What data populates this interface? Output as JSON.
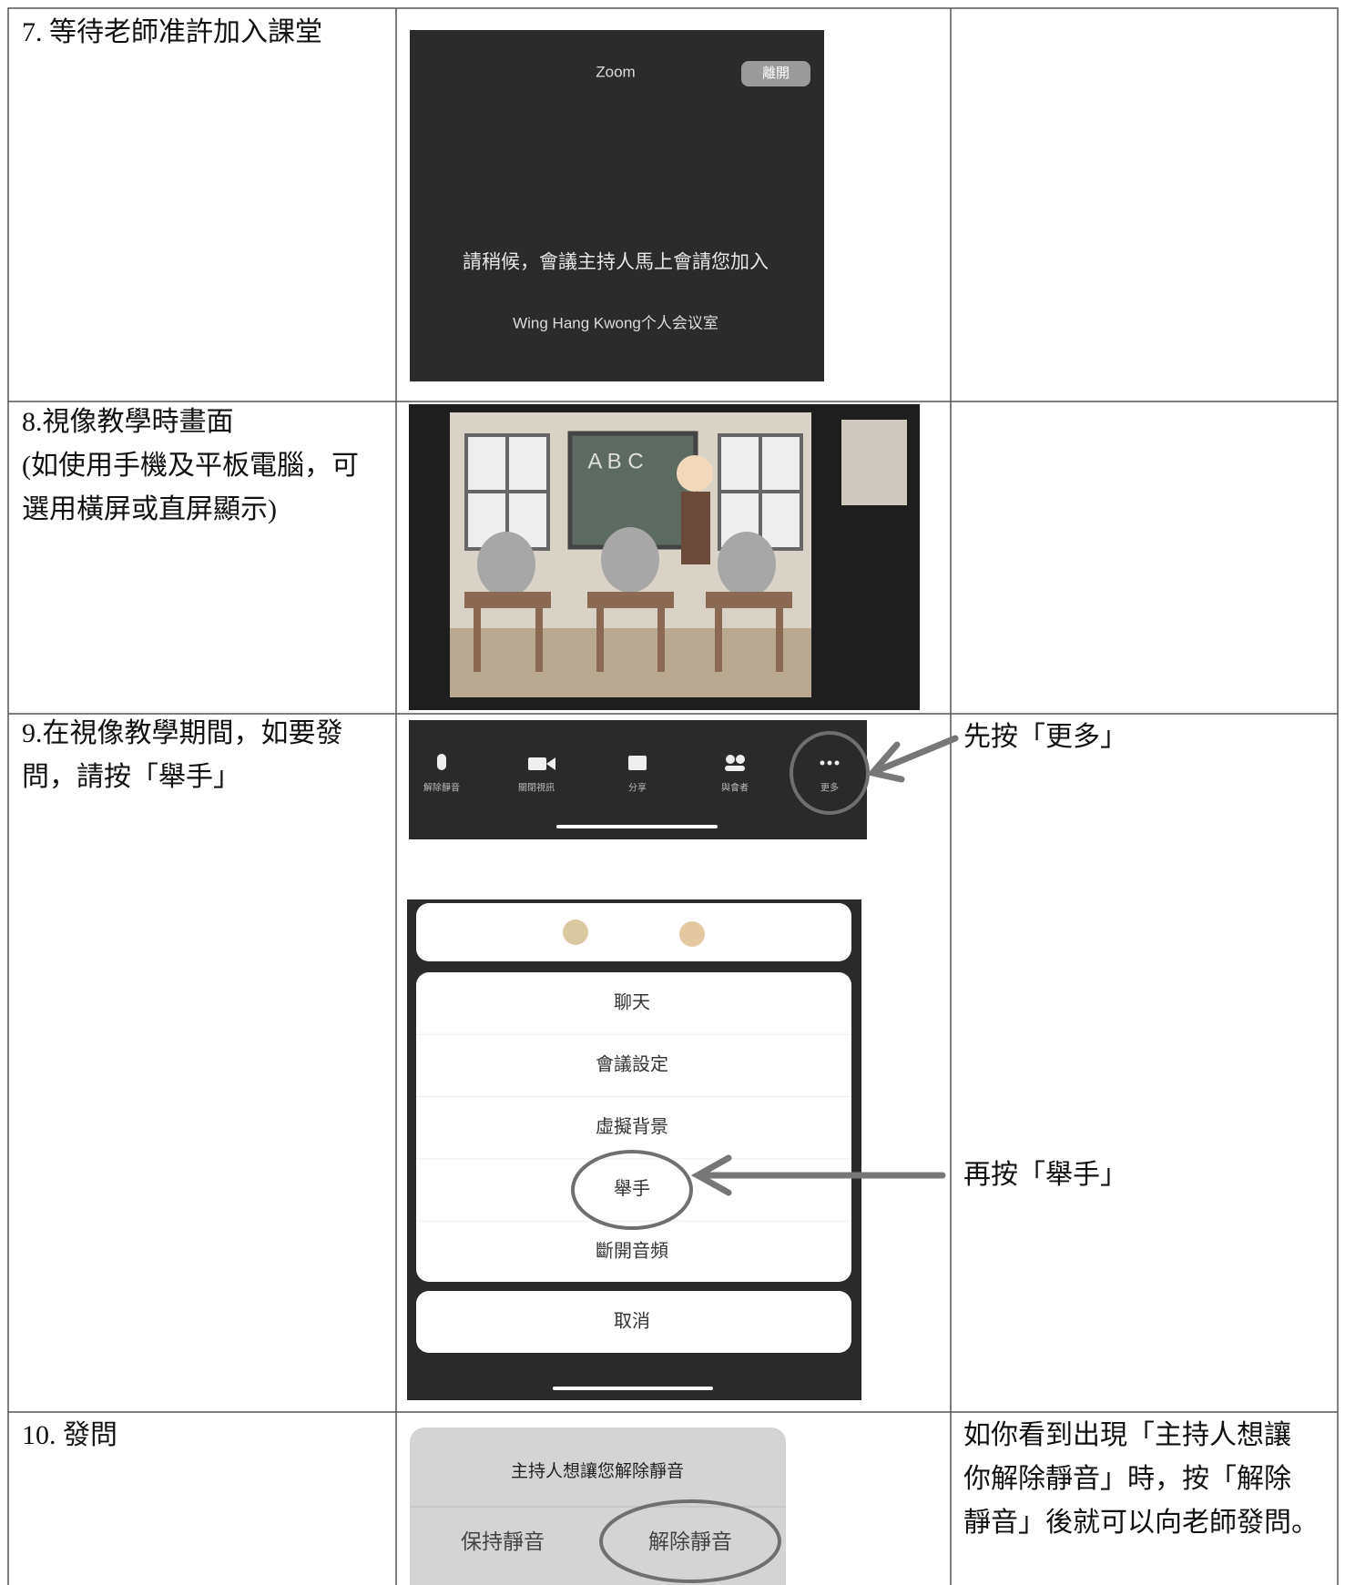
{
  "rows": [
    {
      "step": [
        "7. 等待老師准許加入課堂"
      ],
      "waiting_screen": {
        "title": "Zoom",
        "button": "離開",
        "message": "請稍候，會議主持人馬上會請您加入",
        "room": "Wing Hang Kwong个人会议室"
      }
    },
    {
      "step": [
        "8.視像教學時畫面",
        "(如使用手機及平板電腦，可",
        "選用橫屏或直屏顯示)"
      ],
      "classroom_screen": {
        "board": "A B C"
      }
    },
    {
      "step": [
        "9.在視像教學期間，如要發",
        "問，請按「舉手」"
      ],
      "toolbar": [
        "解除靜音",
        "關閉視訊",
        "分享",
        "與會者",
        "更多"
      ],
      "menu": [
        "聊天",
        "會議設定",
        "虛擬背景",
        "舉手",
        "斷開音頻"
      ],
      "cancel": "取消",
      "notes": [
        "先按「更多」",
        "再按「舉手」"
      ]
    },
    {
      "step": [
        "10. 發問"
      ],
      "dialog": {
        "title": "主持人想讓您解除靜音",
        "buttons": [
          "保持靜音",
          "解除靜音"
        ]
      },
      "notes": [
        "如你看到出現「主持人想讓",
        "你解除靜音」時，按「解除",
        "靜音」後就可以向老師發問。"
      ]
    }
  ]
}
